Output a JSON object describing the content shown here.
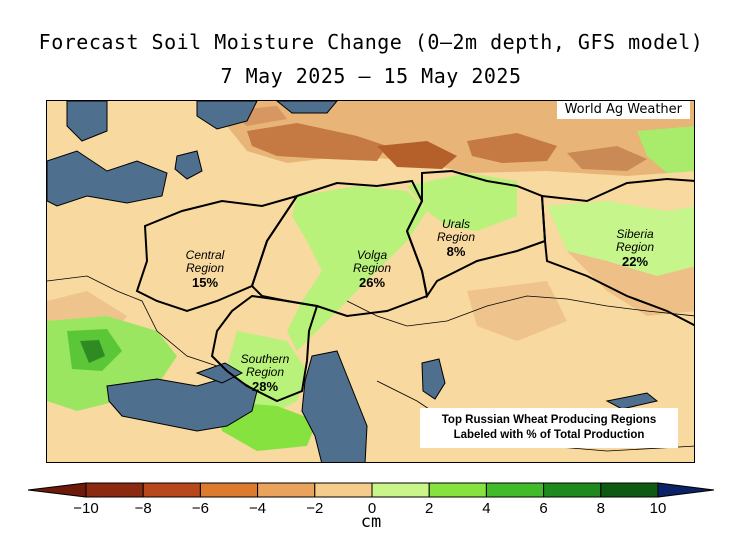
{
  "header": {
    "title": "Forecast Soil Moisture Change (0—2m depth, GFS model)",
    "date_range": "7 May 2025 — 15 May 2025"
  },
  "map": {
    "credit": "World Ag Weather",
    "regions": [
      {
        "name": "Central\nRegion",
        "label_1": "Central",
        "label_2": "Region",
        "share": "15%"
      },
      {
        "name": "Volga Region",
        "label_1": "Volga",
        "label_2": "Region",
        "share": "26%"
      },
      {
        "name": "Urals Region",
        "label_1": "Urals",
        "label_2": "Region",
        "share": "8%"
      },
      {
        "name": "Siberia Region",
        "label_1": "Siberia",
        "label_2": "Region",
        "share": "22%"
      },
      {
        "name": "Southern Region",
        "label_1": "Southern",
        "label_2": "Region",
        "share": "28%"
      }
    ],
    "note_line_1": "Top Russian Wheat Producing Regions",
    "note_line_2": "Labeled with % of Total Production",
    "colors": {
      "water": "#4f6f8f",
      "neutral": "#f8d9a0",
      "dry_light": "#e8b477",
      "dry_strong": "#b5602b",
      "wet_light": "#b8f27a",
      "wet": "#6fd648",
      "wet_strong": "#2f9a2a"
    }
  },
  "colorbar": {
    "unit": "cm",
    "ticks": [
      "−10",
      "−8",
      "−6",
      "−4",
      "−2",
      "0",
      "2",
      "4",
      "6",
      "8",
      "10"
    ],
    "colors": [
      "#8b2a10",
      "#b8471b",
      "#dc7a2e",
      "#e9a35c",
      "#f5cc8a",
      "#fbe6b4",
      "#c9f58a",
      "#86e23f",
      "#42bb2b",
      "#1e8a1e",
      "#0f5a12"
    ],
    "under_color": "#6e1a0a",
    "over_color": "#0c2266"
  }
}
